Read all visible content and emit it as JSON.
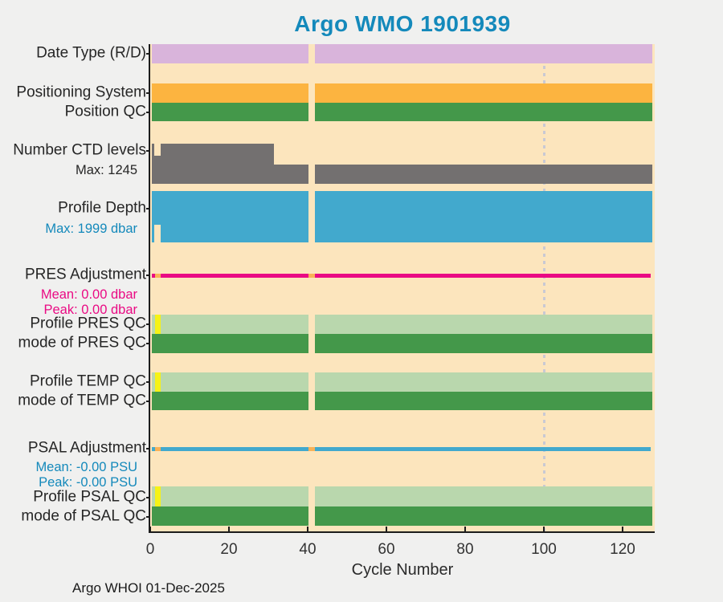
{
  "title": "Argo WMO 1901939",
  "footer": "Argo WHOI 01-Dec-2025",
  "colors": {
    "title_text": "#1489bb",
    "page_bg": "#f0f0ef",
    "plot_bg": "#fce5bd",
    "axis": "#1c1c1c",
    "missing_gap": "#fce5bd",
    "interpolated_orange": "#f9b257",
    "anomaly_yellow": "#f6f216",
    "guide_dots": "#c9c9d3",
    "blue_text": "#1489bb",
    "magenta_text": "#ea0b84",
    "black_text": "#262626"
  },
  "chart_data": {
    "type": "bar",
    "subtype": "horizontal-status-timeline",
    "title": "Argo WMO 1901939",
    "xlabel": "Cycle Number",
    "x": {
      "min": 0,
      "max": 128,
      "ticks": [
        0,
        20,
        40,
        60,
        80,
        100,
        120
      ],
      "first_cycle": 1,
      "last_cycle": 127,
      "missing_cycle": 41,
      "missing_gap": [
        40.3,
        41.8
      ],
      "dotted_guide_at": 100
    },
    "rows": [
      {
        "id": "date_type",
        "label": "Date Type (R/D)",
        "render": "band",
        "color": "#d9b4db",
        "segments": [
          [
            0.4,
            127.5
          ]
        ]
      },
      {
        "id": "positioning_system",
        "label": "Positioning System",
        "render": "band",
        "color": "#fcb440",
        "segments": [
          [
            0.4,
            127.5
          ]
        ]
      },
      {
        "id": "position_qc",
        "label": "Position QC",
        "render": "band",
        "color": "#44984a",
        "segments": [
          [
            0.4,
            127.5
          ]
        ]
      },
      {
        "id": "n_ctd_levels",
        "label": "Number CTD levels",
        "render": "bars_up",
        "color": "#737070",
        "max_value": 1245,
        "sublabels": [
          {
            "text": "Max: 1245",
            "color": "#262626"
          }
        ],
        "profile": [
          {
            "from": 0.4,
            "to": 1.1,
            "h": 1.0
          },
          {
            "from": 1.1,
            "to": 2.6,
            "h": 0.7
          },
          {
            "from": 2.6,
            "to": 31.4,
            "h": 1.0
          },
          {
            "from": 31.4,
            "to": 127.5,
            "h": 0.48
          }
        ]
      },
      {
        "id": "profile_depth",
        "label": "Profile Depth",
        "render": "bars_down",
        "color": "#42a9cd",
        "max_value": 1999,
        "sublabels": [
          {
            "text": "Max: 1999 dbar",
            "color": "#1489bb"
          }
        ],
        "profile": [
          {
            "from": 0.4,
            "to": 1.1,
            "h": 1.0
          },
          {
            "from": 1.1,
            "to": 2.6,
            "h": 0.65
          },
          {
            "from": 2.6,
            "to": 127.5,
            "h": 1.0
          }
        ]
      },
      {
        "id": "pres_adjustment",
        "label": "PRES Adjustment",
        "render": "line",
        "color": "#ea0b84",
        "mean": "0.00 dbar",
        "peak": "0.00 dbar",
        "sublabels": [
          {
            "text": "Mean: 0.00 dbar",
            "color": "#ea0b84"
          },
          {
            "text": "Peak: 0.00 dbar",
            "color": "#ea0b84"
          }
        ],
        "segments": [
          [
            0.4,
            127.2
          ]
        ],
        "interpolated": [
          [
            1.2,
            2.6
          ],
          [
            40.3,
            41.8
          ]
        ]
      },
      {
        "id": "profile_pres_qc",
        "label": "Profile PRES QC",
        "render": "band",
        "color": "#b9d7ad",
        "segments": [
          [
            0.4,
            127.5
          ]
        ],
        "anomaly": {
          "range": [
            1.3,
            2.6
          ],
          "color": "#f6f216"
        }
      },
      {
        "id": "mode_pres_qc",
        "label": "mode of PRES QC",
        "render": "band",
        "color": "#44984a",
        "segments": [
          [
            0.4,
            127.5
          ]
        ]
      },
      {
        "id": "profile_temp_qc",
        "label": "Profile TEMP QC",
        "render": "band",
        "color": "#b9d7ad",
        "segments": [
          [
            0.4,
            127.5
          ]
        ],
        "anomaly": {
          "range": [
            1.3,
            2.6
          ],
          "color": "#f6f216"
        }
      },
      {
        "id": "mode_temp_qc",
        "label": "mode of TEMP QC",
        "render": "band",
        "color": "#44984a",
        "segments": [
          [
            0.4,
            127.5
          ]
        ]
      },
      {
        "id": "psal_adjustment",
        "label": "PSAL Adjustment",
        "render": "line",
        "color": "#42a9cd",
        "mean": "-0.00 PSU",
        "peak": "-0.00 PSU",
        "sublabels": [
          {
            "text": "Mean: -0.00 PSU",
            "color": "#1489bb"
          },
          {
            "text": "Peak: -0.00 PSU",
            "color": "#1489bb"
          }
        ],
        "segments": [
          [
            0.4,
            127.2
          ]
        ],
        "interpolated": [
          [
            1.2,
            2.6
          ],
          [
            40.3,
            41.8
          ]
        ]
      },
      {
        "id": "profile_psal_qc",
        "label": "Profile PSAL QC",
        "render": "band",
        "color": "#b9d7ad",
        "segments": [
          [
            0.4,
            127.5
          ]
        ],
        "anomaly": {
          "range": [
            1.3,
            2.6
          ],
          "color": "#f6f216"
        }
      },
      {
        "id": "mode_psal_qc",
        "label": "mode of PSAL QC",
        "render": "band",
        "color": "#44984a",
        "segments": [
          [
            0.4,
            127.5
          ]
        ]
      }
    ]
  }
}
